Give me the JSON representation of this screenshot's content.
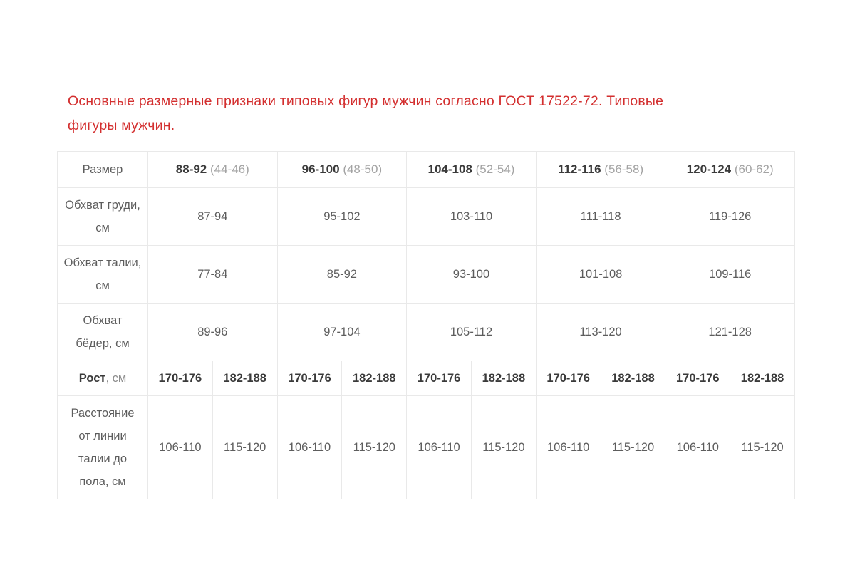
{
  "page": {
    "title_line1": "Основные размерные признаки типовых фигур мужчин согласно ГОСТ 17522-72. Типовые",
    "title_line2": "фигуры мужчин."
  },
  "table": {
    "corner_label": "Размер",
    "size_columns": [
      {
        "size": "88-92",
        "alt": "(44-46)"
      },
      {
        "size": "96-100",
        "alt": "(48-50)"
      },
      {
        "size": "104-108",
        "alt": "(52-54)"
      },
      {
        "size": "112-116",
        "alt": "(56-58)"
      },
      {
        "size": "120-124",
        "alt": "(60-62)"
      }
    ],
    "measurement_rows": [
      {
        "label": "Обхват груди, см",
        "values": [
          "87-94",
          "95-102",
          "103-110",
          "111-118",
          "119-126"
        ]
      },
      {
        "label": "Обхват талии, см",
        "values": [
          "77-84",
          "85-92",
          "93-100",
          "101-108",
          "109-116"
        ]
      },
      {
        "label": "Обхват бёдер, см",
        "values": [
          "89-96",
          "97-104",
          "105-112",
          "113-120",
          "121-128"
        ]
      }
    ],
    "height_row": {
      "label": "Рост",
      "label_suffix": ", см",
      "values": [
        "170-176",
        "182-188",
        "170-176",
        "182-188",
        "170-176",
        "182-188",
        "170-176",
        "182-188",
        "170-176",
        "182-188"
      ]
    },
    "waist_to_floor_row": {
      "label": "Расстояние от линии талии до пола, см",
      "values": [
        "106-110",
        "115-120",
        "106-110",
        "115-120",
        "106-110",
        "115-120",
        "106-110",
        "115-120",
        "106-110",
        "115-120"
      ]
    }
  },
  "colors": {
    "heading": "#d32f2f",
    "header_text": "#3a3a3a",
    "muted_text": "#a3a3a3",
    "cell_text": "#5d5d5d",
    "border": "#e9e9e9"
  }
}
